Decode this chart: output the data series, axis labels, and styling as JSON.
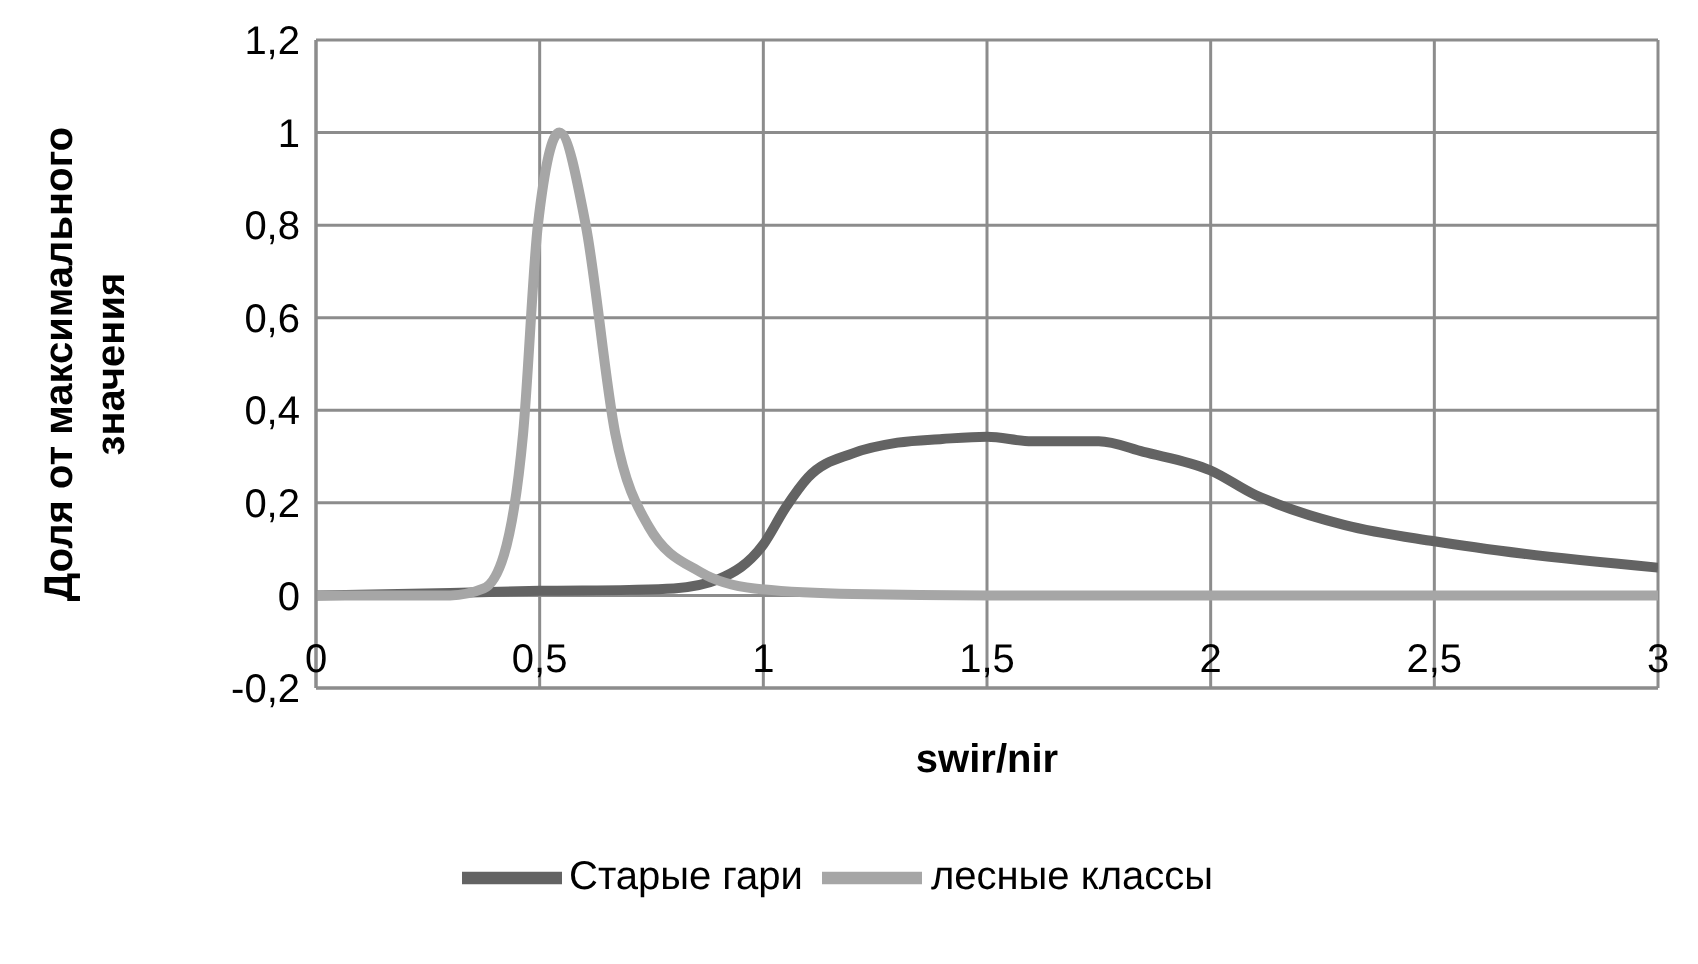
{
  "chart_data": {
    "type": "line",
    "xlabel": "swir/nir",
    "ylabel": "Доля от максимального значения",
    "xlim": [
      0,
      3
    ],
    "xticks": [
      0,
      {
        "value": 0.5,
        "label": "0,5"
      },
      1,
      {
        "value": 1.5,
        "label": "1,5"
      },
      2,
      {
        "value": 2.5,
        "label": "2,5"
      },
      3
    ],
    "ylim": [
      -0.2,
      1.2
    ],
    "yticks": [
      {
        "value": -0.2,
        "label": "-0,2"
      },
      0,
      {
        "value": 0.2,
        "label": "0,2"
      },
      {
        "value": 0.4,
        "label": "0,4"
      },
      {
        "value": 0.6,
        "label": "0,6"
      },
      {
        "value": 0.8,
        "label": "0,8"
      },
      1,
      {
        "value": 1.2,
        "label": "1,2"
      }
    ],
    "grid": true,
    "legend": "bottom",
    "marker": "none",
    "line_style": "solid",
    "series": [
      {
        "name": "Старые гари",
        "color": "#636363",
        "x": [
          0,
          0.3,
          0.5,
          0.7,
          0.8,
          0.9,
          1.0,
          1.05,
          1.1,
          1.2,
          1.3,
          1.4,
          1.5,
          1.6,
          1.75,
          1.85,
          2.0,
          2.1,
          2.15,
          2.3,
          2.5,
          2.7,
          3.0
        ],
        "values": [
          0,
          0.005,
          0.01,
          0.012,
          0.015,
          0.035,
          0.11,
          0.19,
          0.255,
          0.307,
          0.33,
          0.338,
          0.343,
          0.333,
          0.333,
          0.31,
          0.27,
          0.217,
          0.197,
          0.152,
          0.117,
          0.09,
          0.06
        ]
      },
      {
        "name": "лесные классы",
        "color": "#a6a6a6",
        "x": [
          0,
          0.3,
          0.375,
          0.42,
          0.463,
          0.496,
          0.544,
          0.603,
          0.669,
          0.743,
          0.86,
          0.98,
          1.2,
          1.5,
          2.0,
          2.5,
          3.0
        ],
        "values": [
          0,
          0,
          0.015,
          0.087,
          0.35,
          0.8,
          1,
          0.8,
          0.35,
          0.15,
          0.05,
          0.015,
          0.003,
          0,
          0,
          0,
          0
        ]
      }
    ]
  }
}
